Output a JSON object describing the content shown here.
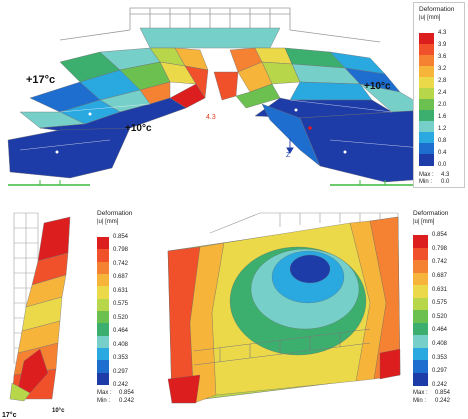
{
  "figures": {
    "top": {
      "temperature_labels": [
        "+17°c",
        "+10°c",
        "+10°c"
      ],
      "max_marker": "4.3",
      "axis_label": "Z",
      "legend": {
        "title": "Deformation",
        "unit": "|u| [mm]",
        "ticks": [
          "4.3",
          "3.9",
          "3.6",
          "3.2",
          "2.8",
          "2.4",
          "2.0",
          "1.6",
          "1.2",
          "0.8",
          "0.4",
          "0.0"
        ],
        "colors": [
          "#dd1e1e",
          "#f0502a",
          "#f58232",
          "#f7b43a",
          "#ecd94a",
          "#b8d64a",
          "#6cc050",
          "#3cae6e",
          "#76cfc8",
          "#2aa9e0",
          "#1e6ed0",
          "#1e3ca8"
        ],
        "max_label": "Max :",
        "max_value": "4.3",
        "min_label": "Min :",
        "min_value": "0.0"
      }
    },
    "bottom_left": {
      "temperature_labels": [
        "17°c",
        "10°c"
      ],
      "legend": {
        "title": "Deformation",
        "unit": "|u| [mm]",
        "ticks": [
          "0.854",
          "0.798",
          "0.742",
          "0.687",
          "0.631",
          "0.575",
          "0.520",
          "0.464",
          "0.408",
          "0.353",
          "0.297",
          "0.242"
        ],
        "colors": [
          "#dd1e1e",
          "#f0502a",
          "#f58232",
          "#f7b43a",
          "#ecd94a",
          "#b8d64a",
          "#6cc050",
          "#3cae6e",
          "#76cfc8",
          "#2aa9e0",
          "#1e6ed0",
          "#1e3ca8"
        ],
        "max_label": "Max :",
        "max_value": "0.854",
        "min_label": "Min :",
        "min_value": "0.242"
      }
    },
    "bottom_right": {
      "legend": {
        "title": "Deformation",
        "unit": "|u| [mm]",
        "ticks": [
          "0.854",
          "0.798",
          "0.742",
          "0.687",
          "0.631",
          "0.575",
          "0.520",
          "0.464",
          "0.408",
          "0.353",
          "0.297",
          "0.242"
        ],
        "colors": [
          "#dd1e1e",
          "#f0502a",
          "#f58232",
          "#f7b43a",
          "#ecd94a",
          "#b8d64a",
          "#6cc050",
          "#3cae6e",
          "#76cfc8",
          "#2aa9e0",
          "#1e6ed0",
          "#1e3ca8"
        ],
        "max_label": "Max :",
        "max_value": "0.854",
        "min_label": "Min :",
        "min_value": "0.242"
      }
    }
  }
}
